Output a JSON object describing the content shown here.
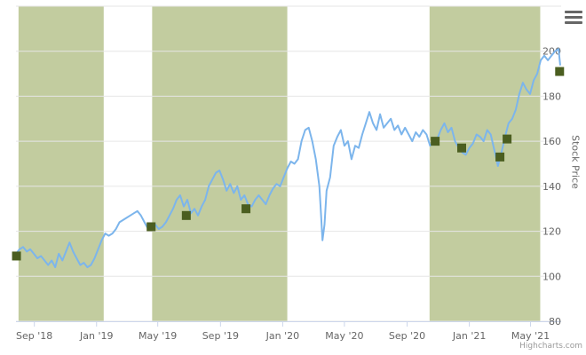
{
  "chart_data": {
    "type": "line",
    "ylabel": "Stock Price",
    "ylim": [
      80,
      220
    ],
    "yticks": [
      80,
      100,
      120,
      140,
      160,
      180,
      200
    ],
    "xlim": [
      "2018-07-27",
      "2021-06-30"
    ],
    "xticks": [
      {
        "date": "2018-09-01",
        "label": "Sep '18"
      },
      {
        "date": "2019-01-01",
        "label": "Jan '19"
      },
      {
        "date": "2019-05-01",
        "label": "May '19"
      },
      {
        "date": "2019-09-01",
        "label": "Sep '19"
      },
      {
        "date": "2020-01-01",
        "label": "Jan '20"
      },
      {
        "date": "2020-05-01",
        "label": "May '20"
      },
      {
        "date": "2020-09-01",
        "label": "Sep '20"
      },
      {
        "date": "2021-01-01",
        "label": "Jan '21"
      },
      {
        "date": "2021-05-01",
        "label": "May '21"
      }
    ],
    "bands": [
      {
        "from": "2018-08-01",
        "to": "2019-01-15"
      },
      {
        "from": "2019-04-20",
        "to": "2020-01-10"
      },
      {
        "from": "2020-10-15",
        "to": "2021-05-20"
      }
    ],
    "band_color": "#c2cc9f",
    "line_color": "#7cb5ec",
    "marker_color": "#4b5e20",
    "series": [
      {
        "points": [
          [
            "2018-07-27",
            110
          ],
          [
            "2018-08-03",
            112
          ],
          [
            "2018-08-10",
            113
          ],
          [
            "2018-08-17",
            111
          ],
          [
            "2018-08-24",
            112
          ],
          [
            "2018-08-31",
            110
          ],
          [
            "2018-09-07",
            108
          ],
          [
            "2018-09-14",
            109
          ],
          [
            "2018-09-21",
            107
          ],
          [
            "2018-09-28",
            105
          ],
          [
            "2018-10-05",
            107
          ],
          [
            "2018-10-12",
            104
          ],
          [
            "2018-10-19",
            110
          ],
          [
            "2018-10-26",
            107
          ],
          [
            "2018-11-02",
            111
          ],
          [
            "2018-11-09",
            115
          ],
          [
            "2018-11-16",
            111
          ],
          [
            "2018-11-23",
            108
          ],
          [
            "2018-11-30",
            105
          ],
          [
            "2018-12-07",
            106
          ],
          [
            "2018-12-14",
            104
          ],
          [
            "2018-12-21",
            105
          ],
          [
            "2018-12-28",
            108
          ],
          [
            "2019-01-04",
            112
          ],
          [
            "2019-01-11",
            116
          ],
          [
            "2019-01-18",
            119
          ],
          [
            "2019-01-25",
            118
          ],
          [
            "2019-02-01",
            119
          ],
          [
            "2019-02-08",
            121
          ],
          [
            "2019-02-15",
            124
          ],
          [
            "2019-02-22",
            125
          ],
          [
            "2019-03-01",
            126
          ],
          [
            "2019-03-08",
            127
          ],
          [
            "2019-03-15",
            128
          ],
          [
            "2019-03-22",
            129
          ],
          [
            "2019-03-29",
            127
          ],
          [
            "2019-04-05",
            124
          ],
          [
            "2019-04-12",
            121
          ],
          [
            "2019-04-19",
            122
          ],
          [
            "2019-04-26",
            123
          ],
          [
            "2019-05-03",
            121
          ],
          [
            "2019-05-10",
            122
          ],
          [
            "2019-05-17",
            124
          ],
          [
            "2019-05-24",
            127
          ],
          [
            "2019-05-31",
            130
          ],
          [
            "2019-06-07",
            134
          ],
          [
            "2019-06-14",
            136
          ],
          [
            "2019-06-21",
            131
          ],
          [
            "2019-06-28",
            134
          ],
          [
            "2019-07-05",
            128
          ],
          [
            "2019-07-12",
            130
          ],
          [
            "2019-07-19",
            127
          ],
          [
            "2019-07-26",
            131
          ],
          [
            "2019-08-02",
            134
          ],
          [
            "2019-08-09",
            140
          ],
          [
            "2019-08-16",
            143
          ],
          [
            "2019-08-23",
            146
          ],
          [
            "2019-08-30",
            147
          ],
          [
            "2019-09-06",
            143
          ],
          [
            "2019-09-13",
            138
          ],
          [
            "2019-09-20",
            141
          ],
          [
            "2019-09-27",
            137
          ],
          [
            "2019-10-04",
            140
          ],
          [
            "2019-10-11",
            134
          ],
          [
            "2019-10-18",
            136
          ],
          [
            "2019-10-25",
            132
          ],
          [
            "2019-11-01",
            131
          ],
          [
            "2019-11-08",
            134
          ],
          [
            "2019-11-15",
            136
          ],
          [
            "2019-11-22",
            134
          ],
          [
            "2019-11-29",
            132
          ],
          [
            "2019-12-06",
            136
          ],
          [
            "2019-12-13",
            139
          ],
          [
            "2019-12-20",
            141
          ],
          [
            "2019-12-27",
            140
          ],
          [
            "2020-01-03",
            144
          ],
          [
            "2020-01-10",
            148
          ],
          [
            "2020-01-17",
            151
          ],
          [
            "2020-01-24",
            150
          ],
          [
            "2020-01-31",
            152
          ],
          [
            "2020-02-07",
            160
          ],
          [
            "2020-02-14",
            165
          ],
          [
            "2020-02-21",
            166
          ],
          [
            "2020-02-28",
            160
          ],
          [
            "2020-03-06",
            152
          ],
          [
            "2020-03-13",
            140
          ],
          [
            "2020-03-16",
            128
          ],
          [
            "2020-03-19",
            116
          ],
          [
            "2020-03-23",
            123
          ],
          [
            "2020-03-27",
            138
          ],
          [
            "2020-04-03",
            144
          ],
          [
            "2020-04-10",
            158
          ],
          [
            "2020-04-17",
            162
          ],
          [
            "2020-04-24",
            165
          ],
          [
            "2020-05-01",
            158
          ],
          [
            "2020-05-08",
            160
          ],
          [
            "2020-05-15",
            152
          ],
          [
            "2020-05-22",
            158
          ],
          [
            "2020-05-29",
            157
          ],
          [
            "2020-06-05",
            163
          ],
          [
            "2020-06-12",
            168
          ],
          [
            "2020-06-19",
            173
          ],
          [
            "2020-06-26",
            168
          ],
          [
            "2020-07-03",
            165
          ],
          [
            "2020-07-10",
            172
          ],
          [
            "2020-07-17",
            166
          ],
          [
            "2020-07-24",
            168
          ],
          [
            "2020-07-31",
            170
          ],
          [
            "2020-08-07",
            165
          ],
          [
            "2020-08-14",
            167
          ],
          [
            "2020-08-21",
            163
          ],
          [
            "2020-08-28",
            166
          ],
          [
            "2020-09-04",
            163
          ],
          [
            "2020-09-11",
            160
          ],
          [
            "2020-09-18",
            164
          ],
          [
            "2020-09-25",
            162
          ],
          [
            "2020-10-02",
            165
          ],
          [
            "2020-10-09",
            163
          ],
          [
            "2020-10-16",
            158
          ],
          [
            "2020-10-23",
            160
          ],
          [
            "2020-10-30",
            161
          ],
          [
            "2020-11-06",
            165
          ],
          [
            "2020-11-13",
            168
          ],
          [
            "2020-11-20",
            164
          ],
          [
            "2020-11-27",
            166
          ],
          [
            "2020-12-04",
            160
          ],
          [
            "2020-12-11",
            157
          ],
          [
            "2020-12-18",
            155
          ],
          [
            "2020-12-25",
            154
          ],
          [
            "2021-01-01",
            157
          ],
          [
            "2021-01-08",
            159
          ],
          [
            "2021-01-15",
            163
          ],
          [
            "2021-01-22",
            162
          ],
          [
            "2021-01-29",
            160
          ],
          [
            "2021-02-05",
            165
          ],
          [
            "2021-02-12",
            163
          ],
          [
            "2021-02-19",
            156
          ],
          [
            "2021-02-26",
            149
          ],
          [
            "2021-03-05",
            155
          ],
          [
            "2021-03-12",
            162
          ],
          [
            "2021-03-19",
            168
          ],
          [
            "2021-03-26",
            170
          ],
          [
            "2021-04-02",
            174
          ],
          [
            "2021-04-09",
            181
          ],
          [
            "2021-04-16",
            186
          ],
          [
            "2021-04-23",
            183
          ],
          [
            "2021-04-30",
            181
          ],
          [
            "2021-05-07",
            187
          ],
          [
            "2021-05-14",
            190
          ],
          [
            "2021-05-21",
            196
          ],
          [
            "2021-05-28",
            198
          ],
          [
            "2021-06-04",
            196
          ],
          [
            "2021-06-11",
            198
          ],
          [
            "2021-06-18",
            200
          ],
          [
            "2021-06-25",
            201
          ],
          [
            "2021-06-28",
            194
          ]
        ]
      }
    ],
    "markers": [
      [
        "2018-07-28",
        109
      ],
      [
        "2019-04-18",
        122
      ],
      [
        "2019-06-26",
        127
      ],
      [
        "2019-10-21",
        130
      ],
      [
        "2020-10-26",
        160
      ],
      [
        "2020-12-17",
        157
      ],
      [
        "2021-03-02",
        153
      ],
      [
        "2021-03-16",
        161
      ],
      [
        "2021-06-27",
        191
      ]
    ]
  },
  "ui": {
    "credits": "Highcharts.com",
    "menu_icon": "hamburger-menu-icon"
  }
}
